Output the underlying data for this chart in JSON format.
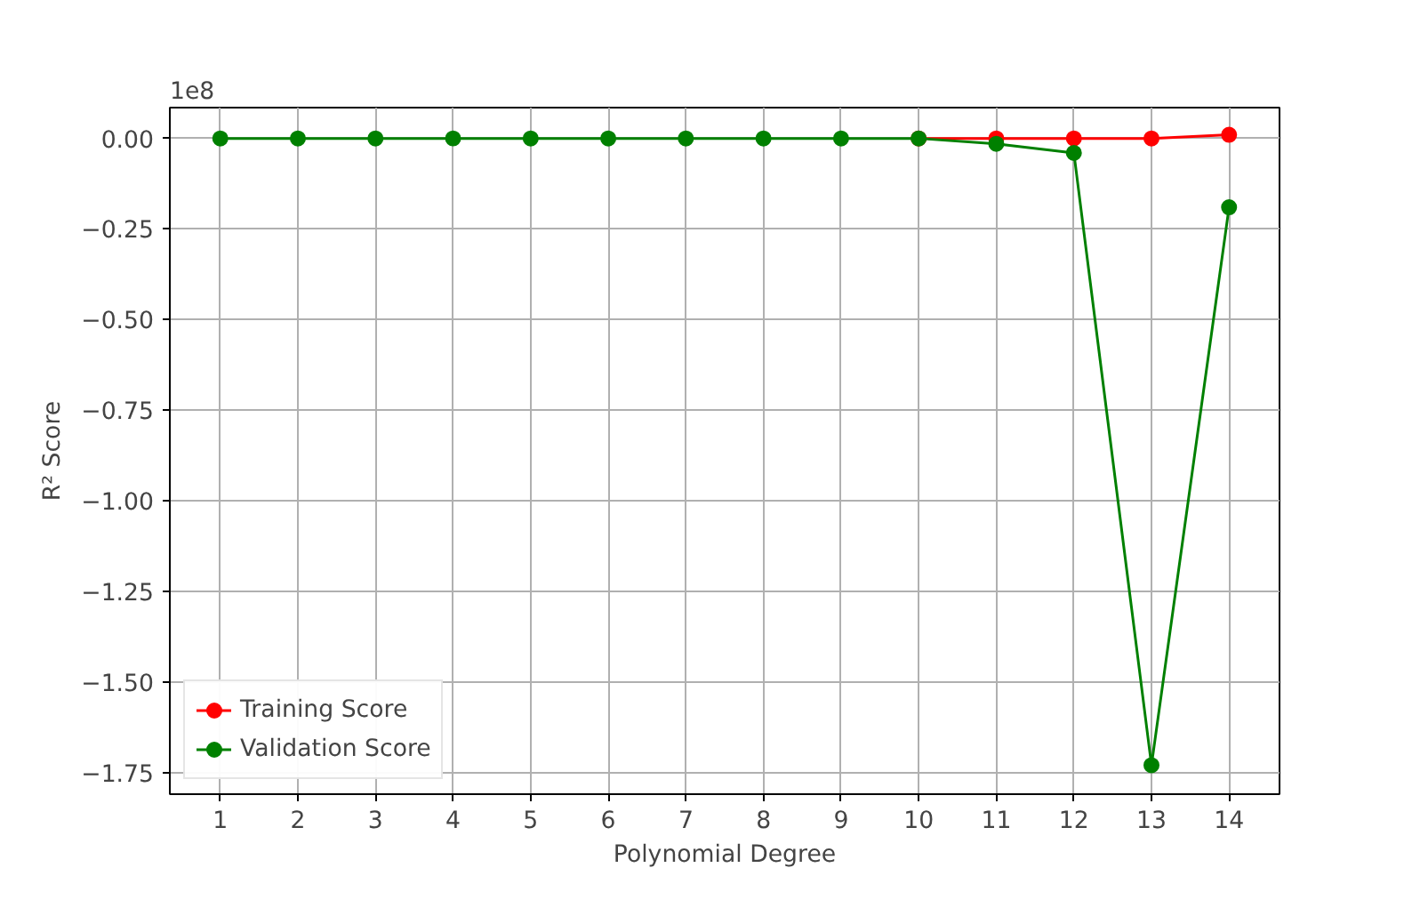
{
  "chart_data": {
    "type": "line",
    "xlabel": "Polynomial Degree",
    "ylabel": "R² Score",
    "annotations": [
      "1e8"
    ],
    "x": [
      1,
      2,
      3,
      4,
      5,
      6,
      7,
      8,
      9,
      10,
      11,
      12,
      13,
      14
    ],
    "series": [
      {
        "name": "Training Score",
        "color": "#ff0000",
        "values": [
          null,
          null,
          null,
          null,
          null,
          null,
          null,
          null,
          null,
          0,
          0,
          0,
          0,
          0.01
        ]
      },
      {
        "name": "Validation Score",
        "color": "#008000",
        "values": [
          0,
          0,
          0,
          0,
          0,
          0,
          0,
          0,
          0,
          0,
          -0.015,
          -0.04,
          -1.73,
          -0.19
        ]
      }
    ],
    "xlim": [
      0.35,
      14.65
    ],
    "xticks": [
      1,
      2,
      3,
      4,
      5,
      6,
      7,
      8,
      9,
      10,
      11,
      12,
      13,
      14
    ],
    "ylim": [
      -1.81,
      0.085
    ],
    "yticks": [
      {
        "value": 0,
        "label": "0.00"
      },
      {
        "value": -0.25,
        "label": "−0.25"
      },
      {
        "value": -0.5,
        "label": "−0.50"
      },
      {
        "value": -0.75,
        "label": "−0.75"
      },
      {
        "value": -1.0,
        "label": "−1.00"
      },
      {
        "value": -1.25,
        "label": "−1.25"
      },
      {
        "value": -1.5,
        "label": "−1.50"
      },
      {
        "value": -1.75,
        "label": "−1.75"
      }
    ],
    "grid": true,
    "legend": "bottom left",
    "marker": "circle",
    "line_style": "solid"
  }
}
